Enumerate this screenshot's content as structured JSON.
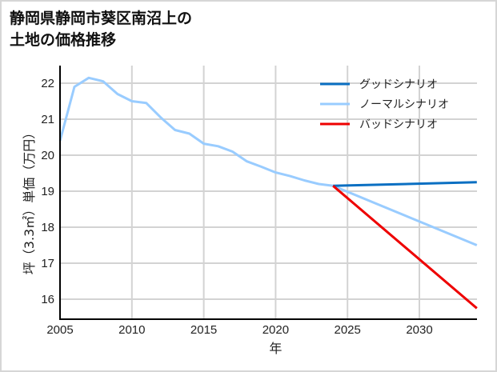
{
  "title_line1": "静岡県静岡市葵区南沼上の",
  "title_line2": "土地の価格推移",
  "chart_data": {
    "type": "line",
    "title": "静岡県静岡市葵区南沼上の土地の価格推移",
    "xlabel": "年",
    "ylabel": "坪（3.3㎡）単価（万円）",
    "xlim": [
      2005,
      2034
    ],
    "ylim": [
      15.45,
      22.5
    ],
    "xticks": [
      2005,
      2010,
      2015,
      2020,
      2025,
      2030
    ],
    "yticks": [
      16,
      17,
      18,
      19,
      20,
      21,
      22
    ],
    "grid": true,
    "legend_position": "upper right",
    "series": [
      {
        "name": "グッドシナリオ",
        "color": "#0a6fc2",
        "x": [
          2024,
          2034
        ],
        "values": [
          19.15,
          19.25
        ]
      },
      {
        "name": "ノーマルシナリオ",
        "color": "#99ccff",
        "x": [
          2005,
          2006,
          2007,
          2008,
          2009,
          2010,
          2011,
          2012,
          2013,
          2014,
          2015,
          2016,
          2017,
          2018,
          2019,
          2020,
          2021,
          2022,
          2023,
          2024,
          2034
        ],
        "values": [
          20.4,
          21.9,
          22.15,
          22.05,
          21.7,
          21.5,
          21.45,
          21.05,
          20.7,
          20.6,
          20.32,
          20.25,
          20.1,
          19.83,
          19.68,
          19.52,
          19.42,
          19.3,
          19.2,
          19.15,
          17.5
        ]
      },
      {
        "name": "バッドシナリオ",
        "color": "#ee0000",
        "x": [
          2024,
          2034
        ],
        "values": [
          19.15,
          15.75
        ]
      }
    ]
  }
}
